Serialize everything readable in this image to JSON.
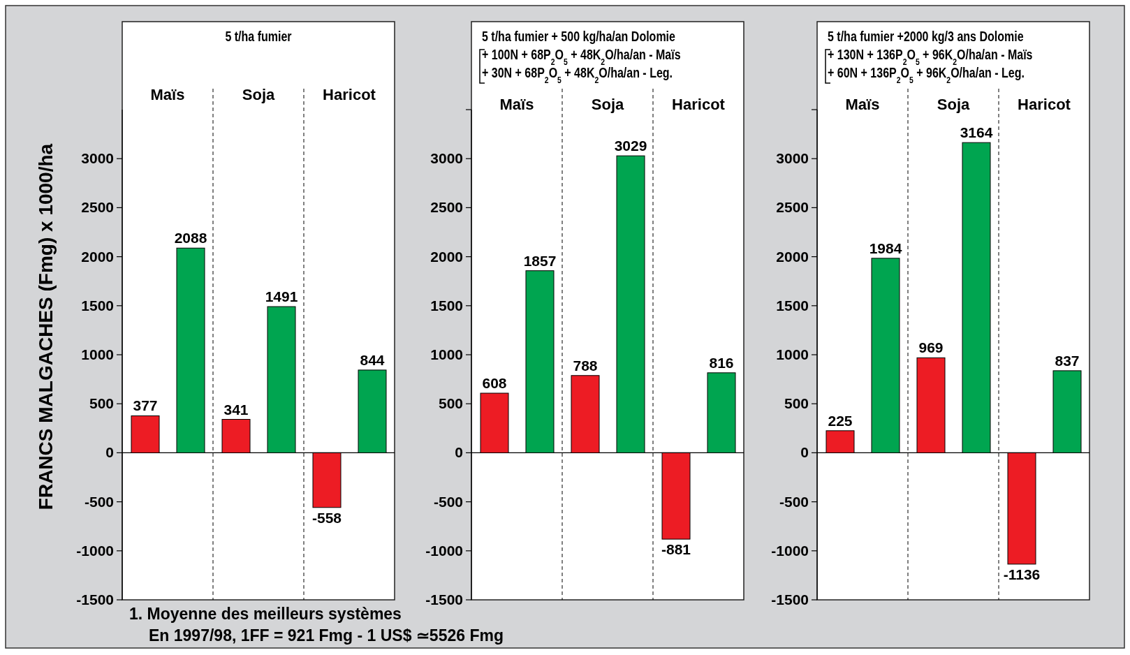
{
  "chart_data": [
    {
      "type": "bar",
      "title": "5 t/ha fumier",
      "ylabel": "FRANCS MALGACHES (Fmg) x 1000/ha",
      "categories": [
        "Maïs",
        "Soja",
        "Haricot"
      ],
      "series": [
        {
          "color": "#ed1c24",
          "values": [
            377,
            341,
            -558
          ]
        },
        {
          "color": "#00a550",
          "values": [
            2088,
            1491,
            844
          ]
        }
      ],
      "ylim": [
        -1500,
        3500
      ],
      "yticks": [
        -1500,
        -1000,
        -500,
        0,
        500,
        1000,
        1500,
        2000,
        2500,
        3000
      ],
      "data_labels": true,
      "annotations": [
        "1. Moyenne des meilleurs systèmes",
        "En 1997/98, 1FF = 921 Fmg - 1 US$ ≃5526 Fmg"
      ]
    },
    {
      "type": "bar",
      "title": "5 t/ha fumier + 500 kg/ha/an Dolomie\n+ 100N + 68P$_{2}$O$_{5}$ + 48K$_{2}$O/ha/an - Maïs\n+ 30N + 68P$_{2}$O$_{5}$ + 48K$_{2}$O/ha/an - Leg.",
      "categories": [
        "Maïs",
        "Soja",
        "Haricot"
      ],
      "series": [
        {
          "color": "#ed1c24",
          "values": [
            608,
            788,
            -881
          ]
        },
        {
          "color": "#00a550",
          "values": [
            1857,
            3029,
            816
          ]
        }
      ],
      "ylim": [
        -1500,
        3500
      ],
      "yticks": [
        -1500,
        -1000,
        -500,
        0,
        500,
        1000,
        1500,
        2000,
        2500,
        3000,
        {
          "value": 3500,
          "label": null
        }
      ],
      "data_labels": true
    },
    {
      "type": "bar",
      "title": "5 t/ha fumier +2000 kg/3 ans Dolomie\n+ 130N + 136P$_{2}$O$_{5}$ + 96K$_{2}$O/ha/an - Maïs\n+ 60N + 136P$_{2}$O$_{5}$ + 96K$_{2}$O/ha/an - Leg.",
      "categories": [
        "Maïs",
        "Soja",
        "Haricot"
      ],
      "series": [
        {
          "color": "#ed1c24",
          "values": [
            225,
            969,
            -1136
          ]
        },
        {
          "color": "#00a550",
          "values": [
            1984,
            3164,
            837
          ]
        }
      ],
      "ylim": [
        -1500,
        3500
      ],
      "yticks": [
        -1500,
        -1000,
        -500,
        0,
        500,
        1000,
        1500,
        2000,
        2500,
        3000,
        {
          "value": 3500,
          "label": null
        }
      ],
      "data_labels": true
    }
  ]
}
